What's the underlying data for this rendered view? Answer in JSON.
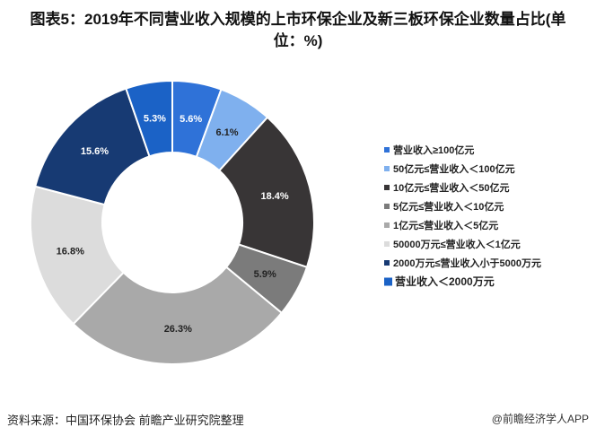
{
  "title_line1": "图表5：2019年不同营业收入规模的上市环保企业及新三板环保企业数量占比(单",
  "title_line2": "位：%)",
  "footer": "资料来源：中国环保协会 前瞻产业研究院整理",
  "brand": "@前瞻经济学人APP",
  "chart_data": {
    "type": "pie",
    "donut": true,
    "title": "图表5：2019年不同营业收入规模的上市环保企业及新三板环保企业数量占比(单位：%)",
    "legend_position": "right",
    "series": [
      {
        "name": "营业收入≥100亿元",
        "value": 5.6,
        "label": "5.6%",
        "color": "#2f72d8"
      },
      {
        "name": "50亿元≤营业收入＜100亿元",
        "value": 6.1,
        "label": "6.1%",
        "color": "#7fb0ee"
      },
      {
        "name": "10亿元≤营业收入＜50亿元",
        "value": 18.4,
        "label": "18.4%",
        "color": "#383536"
      },
      {
        "name": "5亿元≤营业收入＜10亿元",
        "value": 5.9,
        "label": "5.9%",
        "color": "#7b7b7b"
      },
      {
        "name": "1亿元≤营业收入＜5亿元",
        "value": 26.3,
        "label": "26.3%",
        "color": "#a9a9a9"
      },
      {
        "name": "50000万元≤营业收入＜1亿元",
        "value": 16.8,
        "label": "16.8%",
        "color": "#dcdcdc"
      },
      {
        "name": "2000万元≤营业收入小于5000万元",
        "value": 15.6,
        "label": "15.6%",
        "color": "#173a73"
      },
      {
        "name": "营业收入＜2000万元",
        "value": 5.3,
        "label": "5.3%",
        "color": "#1b62c6"
      }
    ]
  }
}
